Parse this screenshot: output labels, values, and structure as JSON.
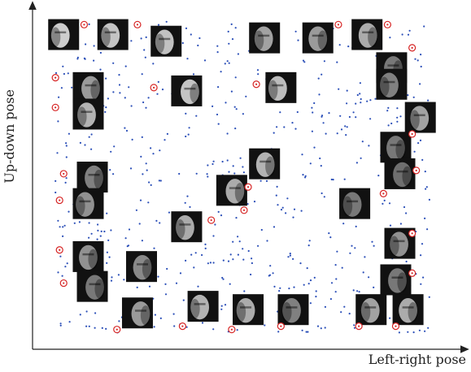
{
  "figure": {
    "xlabel": "Left-right pose",
    "ylabel": "Up-down pose"
  },
  "colors": {
    "axis": "#222222",
    "dot": "#2b4fb8",
    "marker": "#d62424",
    "face_bg": "#111111"
  },
  "chart_data": {
    "type": "scatter",
    "title": "",
    "xlabel": "Left-right pose",
    "ylabel": "Up-down pose",
    "grid": false,
    "legend": "none",
    "xlim": [
      0,
      1
    ],
    "ylim": [
      0,
      1
    ],
    "scatter_point_count": 620,
    "face_images": [
      {
        "x": 0.06,
        "y": 0.93,
        "shade": 0.85
      },
      {
        "x": 0.18,
        "y": 0.93,
        "shade": 0.8
      },
      {
        "x": 0.31,
        "y": 0.91,
        "shade": 0.78
      },
      {
        "x": 0.55,
        "y": 0.92,
        "shade": 0.6
      },
      {
        "x": 0.68,
        "y": 0.92,
        "shade": 0.55
      },
      {
        "x": 0.8,
        "y": 0.93,
        "shade": 0.65
      },
      {
        "x": 0.86,
        "y": 0.83,
        "shade": 0.35
      },
      {
        "x": 0.12,
        "y": 0.77,
        "shade": 0.55
      },
      {
        "x": 0.36,
        "y": 0.76,
        "shade": 0.8
      },
      {
        "x": 0.59,
        "y": 0.77,
        "shade": 0.75
      },
      {
        "x": 0.86,
        "y": 0.78,
        "shade": 0.4
      },
      {
        "x": 0.12,
        "y": 0.69,
        "shade": 0.7
      },
      {
        "x": 0.93,
        "y": 0.68,
        "shade": 0.6
      },
      {
        "x": 0.87,
        "y": 0.59,
        "shade": 0.35
      },
      {
        "x": 0.55,
        "y": 0.54,
        "shade": 0.7
      },
      {
        "x": 0.13,
        "y": 0.5,
        "shade": 0.4
      },
      {
        "x": 0.88,
        "y": 0.51,
        "shade": 0.3
      },
      {
        "x": 0.47,
        "y": 0.46,
        "shade": 0.65
      },
      {
        "x": 0.12,
        "y": 0.42,
        "shade": 0.5
      },
      {
        "x": 0.77,
        "y": 0.42,
        "shade": 0.35
      },
      {
        "x": 0.36,
        "y": 0.35,
        "shade": 0.65
      },
      {
        "x": 0.88,
        "y": 0.3,
        "shade": 0.5
      },
      {
        "x": 0.12,
        "y": 0.26,
        "shade": 0.5
      },
      {
        "x": 0.25,
        "y": 0.23,
        "shade": 0.45
      },
      {
        "x": 0.87,
        "y": 0.19,
        "shade": 0.35
      },
      {
        "x": 0.13,
        "y": 0.17,
        "shade": 0.35
      },
      {
        "x": 0.24,
        "y": 0.09,
        "shade": 0.55
      },
      {
        "x": 0.4,
        "y": 0.11,
        "shade": 0.7
      },
      {
        "x": 0.51,
        "y": 0.1,
        "shade": 0.65
      },
      {
        "x": 0.62,
        "y": 0.1,
        "shade": 0.4
      },
      {
        "x": 0.81,
        "y": 0.1,
        "shade": 0.6
      },
      {
        "x": 0.9,
        "y": 0.1,
        "shade": 0.65
      }
    ],
    "markers": [
      {
        "x": 0.11,
        "y": 0.96
      },
      {
        "x": 0.24,
        "y": 0.96
      },
      {
        "x": 0.73,
        "y": 0.96
      },
      {
        "x": 0.85,
        "y": 0.96
      },
      {
        "x": 0.91,
        "y": 0.89
      },
      {
        "x": 0.04,
        "y": 0.8
      },
      {
        "x": 0.28,
        "y": 0.77
      },
      {
        "x": 0.53,
        "y": 0.78
      },
      {
        "x": 0.04,
        "y": 0.71
      },
      {
        "x": 0.91,
        "y": 0.63
      },
      {
        "x": 0.06,
        "y": 0.51
      },
      {
        "x": 0.92,
        "y": 0.52
      },
      {
        "x": 0.51,
        "y": 0.47
      },
      {
        "x": 0.84,
        "y": 0.45
      },
      {
        "x": 0.05,
        "y": 0.43
      },
      {
        "x": 0.5,
        "y": 0.4
      },
      {
        "x": 0.42,
        "y": 0.37
      },
      {
        "x": 0.91,
        "y": 0.33
      },
      {
        "x": 0.05,
        "y": 0.28
      },
      {
        "x": 0.06,
        "y": 0.18
      },
      {
        "x": 0.91,
        "y": 0.21
      },
      {
        "x": 0.19,
        "y": 0.04
      },
      {
        "x": 0.35,
        "y": 0.05
      },
      {
        "x": 0.47,
        "y": 0.04
      },
      {
        "x": 0.59,
        "y": 0.05
      },
      {
        "x": 0.78,
        "y": 0.05
      },
      {
        "x": 0.87,
        "y": 0.05
      }
    ]
  }
}
